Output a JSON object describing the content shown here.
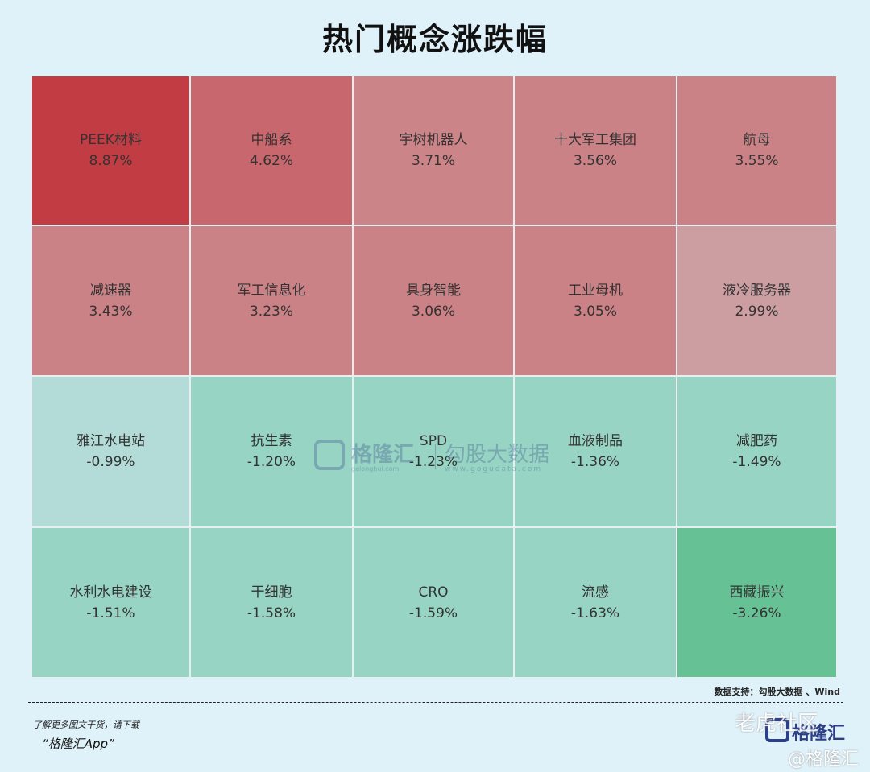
{
  "title": "热门概念涨跌幅",
  "chart_data": {
    "type": "heatmap",
    "rows": 4,
    "cols": 5,
    "cells": [
      {
        "name": "PEEK材料",
        "value": 8.87,
        "label": "8.87%",
        "color": "#c23c44"
      },
      {
        "name": "中船系",
        "value": 4.62,
        "label": "4.62%",
        "color": "#c8676d"
      },
      {
        "name": "宇树机器人",
        "value": 3.71,
        "label": "3.71%",
        "color": "#cb8488"
      },
      {
        "name": "十大军工集团",
        "value": 3.56,
        "label": "3.56%",
        "color": "#cb8286"
      },
      {
        "name": "航母",
        "value": 3.55,
        "label": "3.55%",
        "color": "#cb8286"
      },
      {
        "name": "减速器",
        "value": 3.43,
        "label": "3.43%",
        "color": "#cb8286"
      },
      {
        "name": "军工信息化",
        "value": 3.23,
        "label": "3.23%",
        "color": "#cb8286"
      },
      {
        "name": "具身智能",
        "value": 3.06,
        "label": "3.06%",
        "color": "#cb8286"
      },
      {
        "name": "工业母机",
        "value": 3.05,
        "label": "3.05%",
        "color": "#cb8286"
      },
      {
        "name": "液冷服务器",
        "value": 2.99,
        "label": "2.99%",
        "color": "#cc9ea2"
      },
      {
        "name": "雅江水电站",
        "value": -0.99,
        "label": "-0.99%",
        "color": "#b3dcd8"
      },
      {
        "name": "抗生素",
        "value": -1.2,
        "label": "-1.20%",
        "color": "#97d4c3"
      },
      {
        "name": "SPD",
        "value": -1.23,
        "label": "-1.23%",
        "color": "#97d4c3"
      },
      {
        "name": "血液制品",
        "value": -1.36,
        "label": "-1.36%",
        "color": "#97d4c3"
      },
      {
        "name": "减肥药",
        "value": -1.49,
        "label": "-1.49%",
        "color": "#97d4c3"
      },
      {
        "name": "水利水电建设",
        "value": -1.51,
        "label": "-1.51%",
        "color": "#97d4c3"
      },
      {
        "name": "干细胞",
        "value": -1.58,
        "label": "-1.58%",
        "color": "#97d4c3"
      },
      {
        "name": "CRO",
        "value": -1.59,
        "label": "-1.59%",
        "color": "#97d4c3"
      },
      {
        "name": "流感",
        "value": -1.63,
        "label": "-1.63%",
        "color": "#97d4c3"
      },
      {
        "name": "西藏振兴",
        "value": -3.26,
        "label": "-3.26%",
        "color": "#66c195"
      }
    ]
  },
  "watermark": {
    "brand": "格隆汇",
    "brand_url": "gelonghui.com",
    "gogu": "勾股大数据",
    "gogu_url": "www.gogudata.com"
  },
  "source": "数据支持：勾股大数据 、Wind",
  "footer": {
    "line1": "了解更多图文干货，请下载",
    "line2": "“格隆汇App”",
    "brand": "格隆汇",
    "overlay1": "老虎社区",
    "overlay2": "@格隆汇"
  }
}
